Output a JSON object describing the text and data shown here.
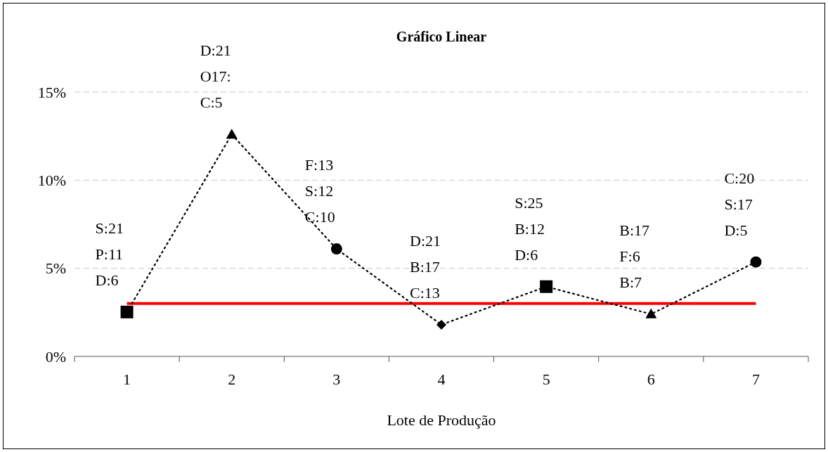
{
  "chart_data": {
    "type": "line",
    "title": "Gráfico Linear",
    "xlabel": "Lote de Produção",
    "categories": [
      "1",
      "2",
      "3",
      "4",
      "5",
      "6",
      "7"
    ],
    "ylim": [
      0,
      0.15
    ],
    "yticks": [
      {
        "value": 0,
        "label": "0%"
      },
      {
        "value": 0.05,
        "label": "5%"
      },
      {
        "value": 0.1,
        "label": "10%"
      },
      {
        "value": 0.15,
        "label": "15%"
      }
    ],
    "grid": "y",
    "series": [
      {
        "color": "#000000",
        "line_style": "dotted",
        "marker": "none",
        "values": [
          0.0252,
          0.126,
          0.061,
          0.018,
          0.0396,
          0.024,
          0.0536
        ]
      },
      {
        "type": "scatter",
        "color": "#000000",
        "marker": "square",
        "x": [
          "1",
          "5"
        ],
        "values": [
          0.0252,
          0.0396
        ]
      },
      {
        "type": "scatter",
        "color": "#000000",
        "marker": "triangle",
        "x": [
          "2",
          "6"
        ],
        "values": [
          0.126,
          0.024
        ]
      },
      {
        "type": "scatter",
        "color": "#000000",
        "marker": "circle",
        "x": [
          "3",
          "7"
        ],
        "values": [
          0.061,
          0.0536
        ]
      },
      {
        "type": "scatter",
        "color": "#000000",
        "marker": "diamond",
        "x": [
          "4"
        ],
        "values": [
          0.018
        ]
      }
    ],
    "ref_lines": [
      {
        "axis": "y",
        "value": 0.03,
        "color": "#ff0000",
        "line_style": "solid"
      }
    ],
    "annotations": [
      {
        "text": "S:21\nP:11\nD:6",
        "x": "1",
        "y": 0.0252
      },
      {
        "text": "D:21\nO17:\nC:5",
        "x": "2",
        "y": 0.126
      },
      {
        "text": "F:13\nS:12\nC:10",
        "x": "3",
        "y": 0.061
      },
      {
        "text": "D:21\nB:17\nC:13",
        "x": "4",
        "y": 0.018
      },
      {
        "text": "S:25\nB:12\nD:6",
        "x": "5",
        "y": 0.0396
      },
      {
        "text": "B:17\nF:6\nB:7",
        "x": "6",
        "y": 0.024
      },
      {
        "text": "C:20\nS:17\nD:5",
        "x": "7",
        "y": 0.0536
      }
    ]
  }
}
